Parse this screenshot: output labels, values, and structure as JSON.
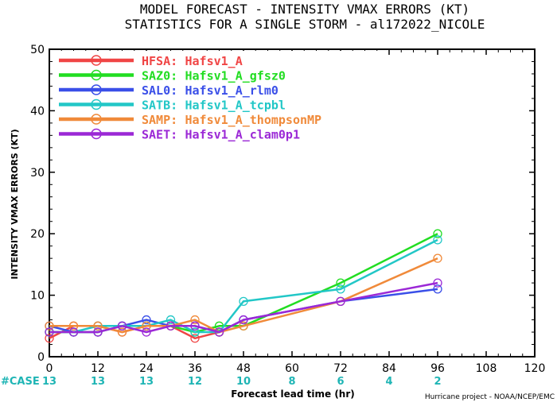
{
  "header": {
    "title_line1": "MODEL FORECAST - INTENSITY VMAX ERRORS (KT)",
    "title_line2": "STATISTICS FOR A SINGLE STORM - al172022_NICOLE"
  },
  "footer": "Hurricane project - NOAA/NCEP/EMC",
  "chart_data": {
    "type": "line",
    "title": "MODEL FORECAST - INTENSITY VMAX ERRORS (KT)",
    "subtitle": "STATISTICS FOR A SINGLE STORM - al172022_NICOLE",
    "xlabel": "Forecast lead time (hr)",
    "ylabel": "INTENSITY VMAX ERRORS (KT)",
    "xlim": [
      0,
      120
    ],
    "ylim": [
      0,
      50
    ],
    "xticks": [
      "0",
      "12",
      "24",
      "36",
      "48",
      "60",
      "72",
      "84",
      "96",
      "108",
      "120"
    ],
    "yticks": [
      "0",
      "10",
      "20",
      "30",
      "40",
      "50"
    ],
    "grid": false,
    "legend_position": "top-left",
    "case_label": "#CASE",
    "case_counts": [
      {
        "x": 0,
        "label": "13"
      },
      {
        "x": 12,
        "label": "13"
      },
      {
        "x": 24,
        "label": "13"
      },
      {
        "x": 36,
        "label": "12"
      },
      {
        "x": 48,
        "label": "10"
      },
      {
        "x": 60,
        "label": "8"
      },
      {
        "x": 72,
        "label": "6"
      },
      {
        "x": 84,
        "label": "4"
      },
      {
        "x": 96,
        "label": "2"
      }
    ],
    "case_color": "#1fb5b5",
    "series": [
      {
        "id": "HFSA",
        "name": "HFSA:",
        "desc": "Hafsv1_A",
        "color": "#f04545",
        "x": [
          0,
          6,
          12,
          18,
          24,
          30,
          36,
          42
        ],
        "y": [
          3,
          5,
          5,
          4,
          5,
          5,
          3,
          4
        ]
      },
      {
        "id": "SAZ0",
        "name": "SAZ0:",
        "desc": "Hafsv1_A_gfsz0",
        "color": "#22dd22",
        "x": [
          0,
          6,
          12,
          18,
          24,
          30,
          36,
          42,
          48,
          72,
          96
        ],
        "y": [
          4,
          4,
          4,
          5,
          5,
          5,
          4,
          5,
          5,
          12,
          20
        ]
      },
      {
        "id": "SAL0",
        "name": "SAL0:",
        "desc": "Hafsv1_A_rlm0",
        "color": "#3a4fe8",
        "x": [
          0,
          6,
          12,
          18,
          24,
          30,
          36,
          42,
          48,
          72,
          96
        ],
        "y": [
          5,
          4,
          4,
          5,
          6,
          5,
          5,
          4,
          6,
          9,
          11
        ]
      },
      {
        "id": "SATB",
        "name": "SATB:",
        "desc": "Hafsv1_A_tcpbl",
        "color": "#22c7c7",
        "x": [
          0,
          6,
          12,
          18,
          24,
          30,
          36,
          42,
          48,
          72,
          96
        ],
        "y": [
          4,
          4,
          5,
          5,
          5,
          6,
          4,
          4,
          9,
          11,
          19
        ]
      },
      {
        "id": "SAMP",
        "name": "SAMP:",
        "desc": "Hafsv1_A_thompsonMP",
        "color": "#f08a3a",
        "x": [
          0,
          6,
          12,
          18,
          24,
          30,
          36,
          42,
          48,
          72,
          96
        ],
        "y": [
          5,
          5,
          5,
          4,
          5,
          5,
          6,
          4,
          5,
          9,
          16
        ]
      },
      {
        "id": "SAET",
        "name": "SAET:",
        "desc": "Hafsv1_A_clam0p1",
        "color": "#9b28d6",
        "x": [
          0,
          6,
          12,
          18,
          24,
          30,
          36,
          42,
          48,
          72,
          96
        ],
        "y": [
          4,
          4,
          4,
          5,
          4,
          5,
          5,
          4,
          6,
          9,
          12
        ]
      }
    ]
  }
}
